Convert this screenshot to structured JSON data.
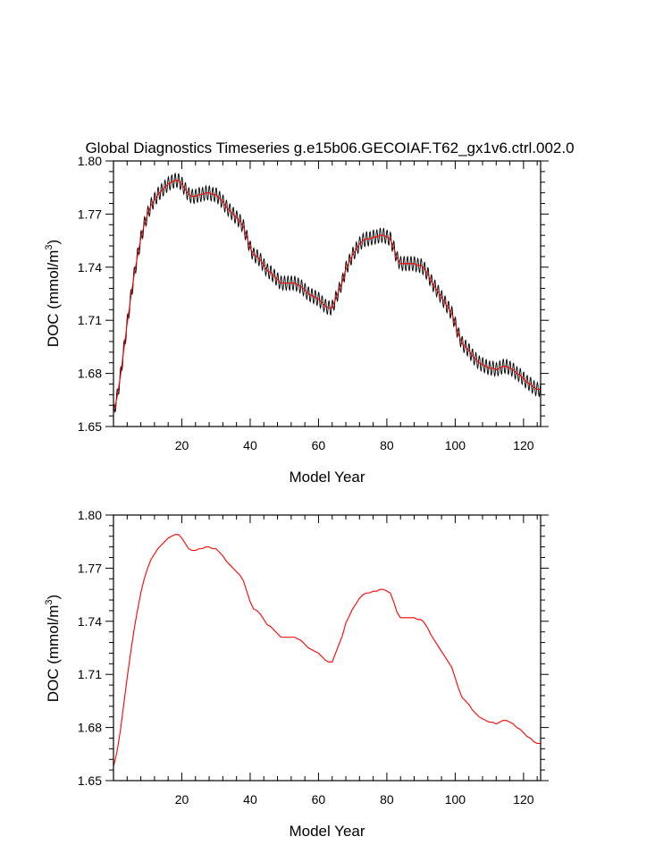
{
  "figure_title": "Global Diagnostics Timeseries g.e15b06.GECOIAF.T62_gx1v6.ctrl.002.0",
  "colors": {
    "monthly": "#000000",
    "annual": "#ff0000",
    "frame": "#000000"
  },
  "chart_data": [
    {
      "id": "top-panel",
      "type": "line",
      "title": "Global Diagnostics Timeseries g.e15b06.GECOIAF.T62_gx1v6.ctrl.002.0",
      "xlabel": "Model Year",
      "ylabel_main": "DOC (mmol/m",
      "ylabel_sup": "3",
      "ylabel_end": ")",
      "xlim": [
        0,
        125
      ],
      "ylim": [
        1.65,
        1.8
      ],
      "xticks": [
        20,
        40,
        60,
        80,
        100,
        120
      ],
      "xtick_labels": [
        "20",
        "40",
        "60",
        "80",
        "100",
        "120"
      ],
      "yticks": [
        1.65,
        1.68,
        1.71,
        1.74,
        1.77,
        1.8
      ],
      "ytick_labels": [
        "1.65",
        "1.68",
        "1.71",
        "1.74",
        "1.77",
        "1.80"
      ],
      "series": [
        {
          "name": "monthly",
          "seasonal_amplitude": 0.004
        },
        {
          "name": "annual mean"
        }
      ],
      "annual_mean": {
        "x": [
          0,
          1,
          2,
          3,
          4,
          5,
          6,
          7,
          8,
          9,
          10,
          11,
          12,
          13,
          14,
          15,
          16,
          17,
          18,
          19,
          20,
          21,
          22,
          23,
          24,
          25,
          26,
          27,
          28,
          29,
          30,
          31,
          32,
          33,
          34,
          35,
          36,
          37,
          38,
          39,
          40,
          41,
          42,
          43,
          44,
          45,
          46,
          47,
          48,
          49,
          50,
          51,
          52,
          53,
          54,
          55,
          56,
          57,
          58,
          59,
          60,
          61,
          62,
          63,
          64,
          65,
          66,
          67,
          68,
          69,
          70,
          71,
          72,
          73,
          74,
          75,
          76,
          77,
          78,
          79,
          80,
          81,
          82,
          83,
          84,
          85,
          86,
          87,
          88,
          89,
          90,
          91,
          92,
          93,
          94,
          95,
          96,
          97,
          98,
          99,
          100,
          101,
          102,
          103,
          104,
          105,
          106,
          107,
          108,
          109,
          110,
          111,
          112,
          113,
          114,
          115,
          116,
          117,
          118,
          119,
          120,
          121,
          122,
          123,
          124,
          125
        ],
        "y": [
          1.658,
          1.666,
          1.678,
          1.693,
          1.708,
          1.722,
          1.735,
          1.746,
          1.756,
          1.764,
          1.77,
          1.775,
          1.778,
          1.781,
          1.783,
          1.785,
          1.787,
          1.788,
          1.789,
          1.789,
          1.787,
          1.784,
          1.781,
          1.78,
          1.78,
          1.781,
          1.781,
          1.782,
          1.782,
          1.781,
          1.781,
          1.779,
          1.777,
          1.774,
          1.772,
          1.77,
          1.768,
          1.766,
          1.763,
          1.757,
          1.751,
          1.747,
          1.746,
          1.744,
          1.741,
          1.738,
          1.737,
          1.735,
          1.733,
          1.731,
          1.731,
          1.731,
          1.731,
          1.731,
          1.73,
          1.729,
          1.727,
          1.725,
          1.724,
          1.723,
          1.722,
          1.72,
          1.718,
          1.717,
          1.717,
          1.722,
          1.727,
          1.732,
          1.739,
          1.743,
          1.747,
          1.75,
          1.753,
          1.755,
          1.756,
          1.756,
          1.757,
          1.757,
          1.758,
          1.758,
          1.757,
          1.756,
          1.751,
          1.745,
          1.742,
          1.742,
          1.742,
          1.742,
          1.742,
          1.741,
          1.741,
          1.739,
          1.736,
          1.732,
          1.729,
          1.726,
          1.723,
          1.72,
          1.717,
          1.714,
          1.708,
          1.702,
          1.697,
          1.695,
          1.693,
          1.69,
          1.688,
          1.686,
          1.685,
          1.684,
          1.683,
          1.683,
          1.682,
          1.683,
          1.684,
          1.684,
          1.683,
          1.682,
          1.68,
          1.679,
          1.677,
          1.675,
          1.674,
          1.672,
          1.671,
          1.671
        ]
      }
    },
    {
      "id": "bottom-panel",
      "type": "line",
      "title": "",
      "xlabel": "Model Year",
      "ylabel_main": "DOC (mmol/m",
      "ylabel_sup": "3",
      "ylabel_end": ")",
      "xlim": [
        0,
        125
      ],
      "ylim": [
        1.65,
        1.8
      ],
      "xticks": [
        20,
        40,
        60,
        80,
        100,
        120
      ],
      "xtick_labels": [
        "20",
        "40",
        "60",
        "80",
        "100",
        "120"
      ],
      "yticks": [
        1.65,
        1.68,
        1.71,
        1.74,
        1.77,
        1.8
      ],
      "ytick_labels": [
        "1.65",
        "1.68",
        "1.71",
        "1.74",
        "1.77",
        "1.80"
      ],
      "series": [
        {
          "name": "annual mean"
        }
      ]
    }
  ]
}
